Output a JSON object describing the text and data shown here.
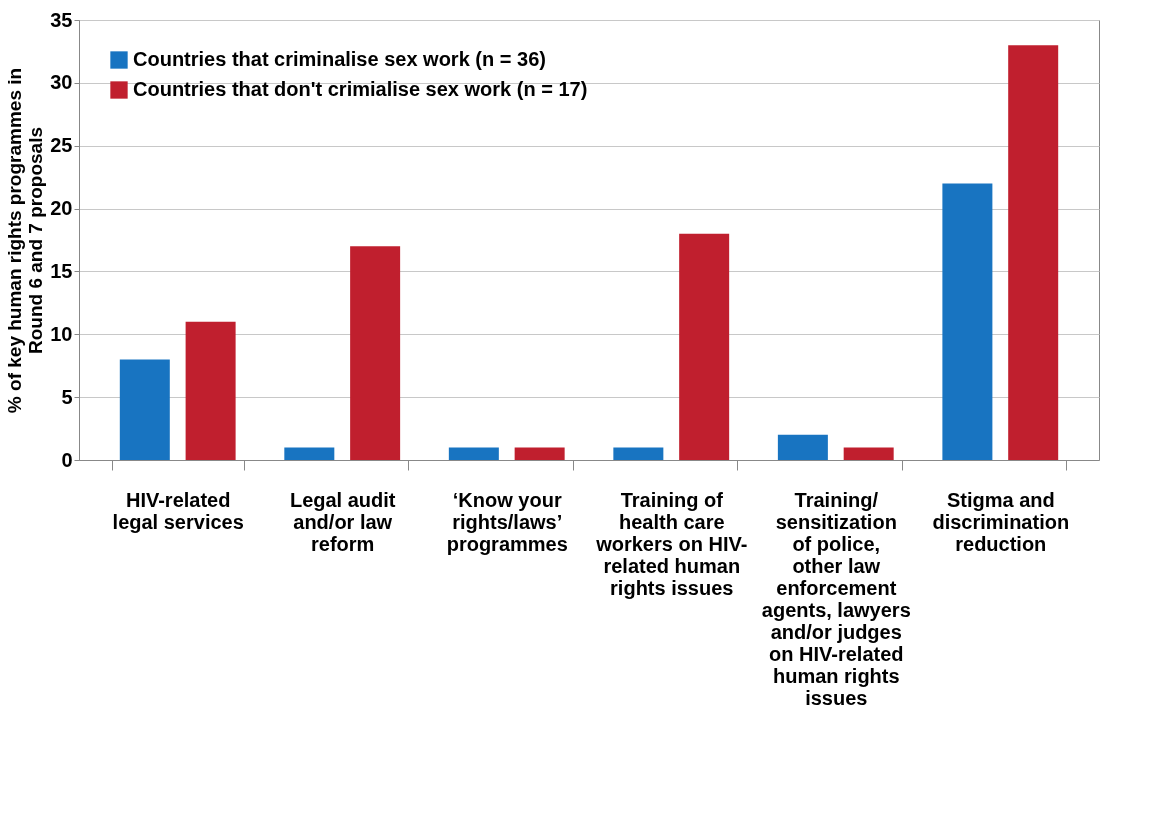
{
  "chart_data": {
    "type": "bar",
    "ylabel": "% of key human rights programmes in Round 6 and 7 proposals",
    "categories": [
      "HIV-related legal services",
      "Legal audit and/or law reform",
      "‘Know your rights/laws’ programmes",
      "Training of health care workers on HIV-related human rights issues",
      "Training/ sensitization of police, other law enforcement agents, lawyers and/or judges on HIV-related human rights issues",
      "Stigma and discrimination reduction"
    ],
    "series": [
      {
        "name": "Countries that criminalise sex work (n = 36)",
        "color": "#1874c1",
        "values": [
          8,
          1,
          1,
          1,
          2,
          22
        ]
      },
      {
        "name": "Countries that don't crimialise sex work (n = 17)",
        "color": "#c01f2e",
        "values": [
          11,
          17,
          1,
          18,
          1,
          33
        ]
      }
    ],
    "ylim": [
      0,
      35
    ],
    "yticks": [
      0,
      5,
      10,
      15,
      20,
      25,
      30,
      35
    ],
    "grid": "y",
    "legend": "top left"
  }
}
